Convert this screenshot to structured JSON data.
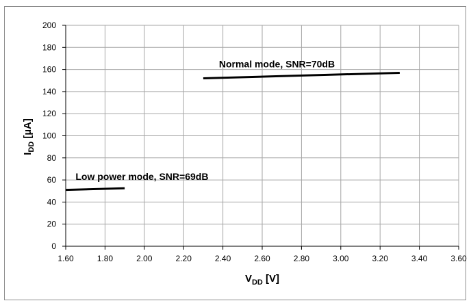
{
  "chart_data": {
    "type": "line",
    "xlabel": {
      "main": "V",
      "sub": "DD",
      "unit": " [V]"
    },
    "ylabel": {
      "main": "I",
      "sub": "DD",
      "unit": " [µA]"
    },
    "xlim": [
      1.6,
      3.6
    ],
    "ylim": [
      0,
      200
    ],
    "x_ticks": [
      "1.60",
      "1.80",
      "2.00",
      "2.20",
      "2.40",
      "2.60",
      "2.80",
      "3.00",
      "3.20",
      "3.40",
      "3.60"
    ],
    "y_ticks": [
      "0",
      "20",
      "40",
      "60",
      "80",
      "100",
      "120",
      "140",
      "160",
      "180",
      "200"
    ],
    "grid": true,
    "series": [
      {
        "x": [
          1.6,
          1.9
        ],
        "y": [
          51,
          52.5
        ]
      },
      {
        "x": [
          2.3,
          3.3
        ],
        "y": [
          152,
          157
        ]
      }
    ],
    "annotations": [
      {
        "text": "Low power mode, SNR=69dB",
        "x": 1.65,
        "y": 60
      },
      {
        "text": "Normal mode, SNR=70dB",
        "x": 2.38,
        "y": 162
      }
    ]
  }
}
